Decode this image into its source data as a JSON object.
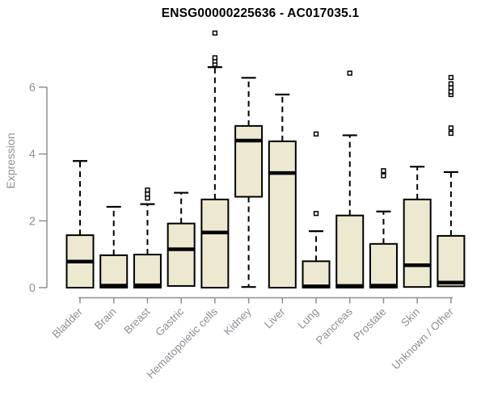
{
  "title": "ENSG00000225636 - AC017035.1",
  "chart_data": {
    "type": "boxplot",
    "title": "ENSG00000225636 - AC017035.1",
    "xlabel": "",
    "ylabel": "Expression",
    "yticks": [
      0,
      2,
      4,
      6
    ],
    "ylim": [
      0,
      7.8
    ],
    "grid": "off",
    "box_fill": "#EDE8D0",
    "box_stroke": "#000000",
    "median_color": "#000000",
    "axis_color": "#8a8f94",
    "tick_label_color": "#8b9096",
    "categories": [
      "Bladder",
      "Brain",
      "Breast",
      "Gastric",
      "Hematopoietic cells",
      "Kidney",
      "Liver",
      "Lung",
      "Pancreas",
      "Prostate",
      "Skin",
      "Unknown / Other"
    ],
    "boxes": [
      {
        "category": "Bladder",
        "whisker_low": 0,
        "q1": 0,
        "median": 0.78,
        "q3": 1.57,
        "whisker_high": 3.79,
        "outliers": []
      },
      {
        "category": "Brain",
        "whisker_low": 0,
        "q1": 0,
        "median": 0.06,
        "q3": 0.97,
        "whisker_high": 2.42,
        "outliers": []
      },
      {
        "category": "Breast",
        "whisker_low": 0,
        "q1": 0,
        "median": 0.07,
        "q3": 0.99,
        "whisker_high": 2.5,
        "outliers": [
          2.68,
          2.8,
          2.92
        ]
      },
      {
        "category": "Gastric",
        "whisker_low": 0.05,
        "q1": 0.05,
        "median": 1.15,
        "q3": 1.92,
        "whisker_high": 2.84,
        "outliers": []
      },
      {
        "category": "Hematopoietic cells",
        "whisker_low": 0,
        "q1": 0,
        "median": 1.65,
        "q3": 2.64,
        "whisker_high": 6.6,
        "outliers": [
          6.68,
          6.78,
          6.88,
          7.62
        ]
      },
      {
        "category": "Kidney",
        "whisker_low": 0.02,
        "q1": 2.72,
        "median": 4.4,
        "q3": 4.84,
        "whisker_high": 6.28,
        "outliers": []
      },
      {
        "category": "Liver",
        "whisker_low": 0,
        "q1": 0,
        "median": 3.43,
        "q3": 4.38,
        "whisker_high": 5.78,
        "outliers": []
      },
      {
        "category": "Lung",
        "whisker_low": 0,
        "q1": 0,
        "median": 0.04,
        "q3": 0.79,
        "whisker_high": 1.69,
        "outliers": [
          2.22,
          4.6
        ]
      },
      {
        "category": "Pancreas",
        "whisker_low": 0,
        "q1": 0,
        "median": 0.05,
        "q3": 2.16,
        "whisker_high": 4.56,
        "outliers": [
          6.42
        ]
      },
      {
        "category": "Prostate",
        "whisker_low": 0,
        "q1": 0,
        "median": 0.06,
        "q3": 1.31,
        "whisker_high": 2.28,
        "outliers": [
          3.35,
          3.5
        ]
      },
      {
        "category": "Skin",
        "whisker_low": 0.02,
        "q1": 0.02,
        "median": 0.67,
        "q3": 2.64,
        "whisker_high": 3.62,
        "outliers": []
      },
      {
        "category": "Unknown / Other",
        "whisker_low": 0.04,
        "q1": 0.04,
        "median": 0.15,
        "q3": 1.55,
        "whisker_high": 3.46,
        "outliers": [
          4.62,
          4.78,
          5.78,
          5.86,
          5.98,
          6.1,
          6.29
        ]
      }
    ]
  }
}
